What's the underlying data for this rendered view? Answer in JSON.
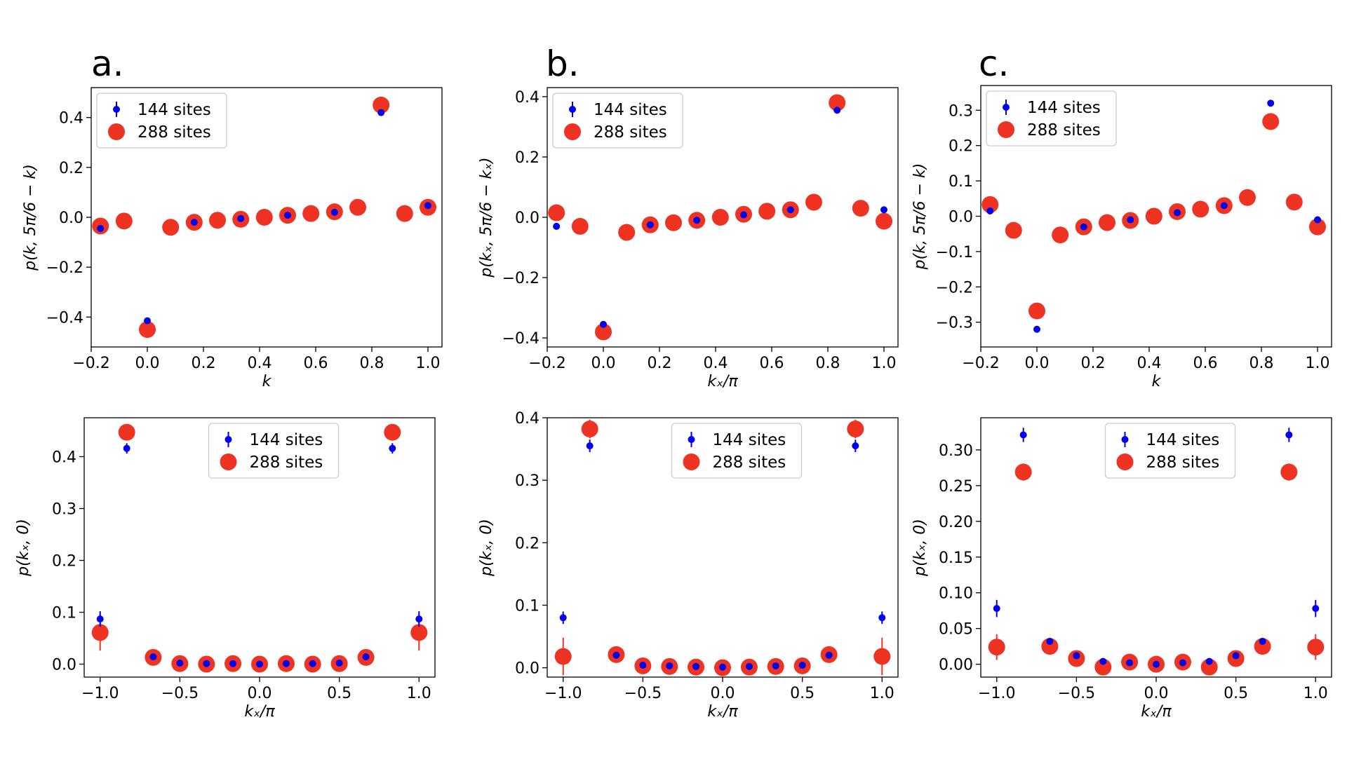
{
  "colors": {
    "series144": "#0000ee",
    "series288": "#ee3322",
    "axis": "#000000",
    "background": "#ffffff",
    "legend_border": "#cccccc"
  },
  "chart_data": [
    {
      "panel": "a.",
      "type": "scatter",
      "xlabel": "k",
      "ylabel": "p(k, 5π/6 − k)",
      "xlim": [
        -0.2,
        1.05
      ],
      "ylim": [
        -0.52,
        0.52
      ],
      "xticks": [
        -0.2,
        0.0,
        0.2,
        0.4,
        0.6,
        0.8,
        1.0
      ],
      "xtick_labels": [
        "−0.2",
        "0.0",
        "0.2",
        "0.4",
        "0.6",
        "0.8",
        "1.0"
      ],
      "yticks": [
        -0.4,
        -0.2,
        0.0,
        0.2,
        0.4
      ],
      "ytick_labels": [
        "−0.4",
        "−0.2",
        "0.0",
        "0.2",
        "0.4"
      ],
      "legend": {
        "position": "top-left",
        "entries": [
          "144 sites",
          "288 sites"
        ]
      },
      "series": [
        {
          "name": "144 sites",
          "marker": "small-dot-errorbar",
          "x": [
            -0.167,
            0.0,
            0.167,
            0.333,
            0.5,
            0.667,
            0.833,
            1.0
          ],
          "y": [
            -0.045,
            -0.415,
            -0.02,
            -0.005,
            0.008,
            0.02,
            0.42,
            0.047
          ],
          "err": [
            0.006,
            0.008,
            0.005,
            0.005,
            0.005,
            0.005,
            0.008,
            0.006
          ]
        },
        {
          "name": "288 sites",
          "marker": "large-dot",
          "x": [
            -0.167,
            -0.083,
            0.0,
            0.083,
            0.167,
            0.25,
            0.333,
            0.417,
            0.5,
            0.583,
            0.667,
            0.75,
            0.833,
            0.917,
            1.0
          ],
          "y": [
            -0.035,
            -0.015,
            -0.45,
            -0.04,
            -0.02,
            -0.012,
            -0.008,
            0.0,
            0.008,
            0.015,
            0.022,
            0.04,
            0.45,
            0.015,
            0.04
          ],
          "err": [
            0,
            0,
            0,
            0,
            0,
            0,
            0,
            0,
            0,
            0,
            0,
            0,
            0,
            0,
            0
          ]
        }
      ]
    },
    {
      "panel": "b.",
      "type": "scatter",
      "xlabel": "kₓ/π",
      "ylabel": "p(kₓ, 5π/6 − kₓ)",
      "xlim": [
        -0.2,
        1.05
      ],
      "ylim": [
        -0.43,
        0.43
      ],
      "xticks": [
        -0.2,
        0.0,
        0.2,
        0.4,
        0.6,
        0.8,
        1.0
      ],
      "xtick_labels": [
        "−0.2",
        "0.0",
        "0.2",
        "0.4",
        "0.6",
        "0.8",
        "1.0"
      ],
      "yticks": [
        -0.4,
        -0.2,
        0.0,
        0.2,
        0.4
      ],
      "ytick_labels": [
        "−0.4",
        "−0.2",
        "0.0",
        "0.2",
        "0.4"
      ],
      "legend": {
        "position": "top-left",
        "entries": [
          "144 sites",
          "288 sites"
        ]
      },
      "series": [
        {
          "name": "144 sites",
          "marker": "small-dot-errorbar",
          "x": [
            -0.167,
            0.0,
            0.167,
            0.333,
            0.5,
            0.667,
            0.833,
            1.0
          ],
          "y": [
            -0.03,
            -0.355,
            -0.025,
            -0.01,
            0.008,
            0.025,
            0.355,
            0.025
          ],
          "err": [
            0.006,
            0.008,
            0.005,
            0.005,
            0.005,
            0.005,
            0.008,
            0.006
          ]
        },
        {
          "name": "288 sites",
          "marker": "large-dot",
          "x": [
            -0.167,
            -0.083,
            0.0,
            0.083,
            0.167,
            0.25,
            0.333,
            0.417,
            0.5,
            0.583,
            0.667,
            0.75,
            0.833,
            0.917,
            1.0
          ],
          "y": [
            0.015,
            -0.03,
            -0.38,
            -0.05,
            -0.025,
            -0.018,
            -0.01,
            0.0,
            0.01,
            0.02,
            0.025,
            0.05,
            0.38,
            0.03,
            -0.013
          ],
          "err": [
            0,
            0,
            0,
            0,
            0,
            0,
            0,
            0,
            0,
            0,
            0,
            0,
            0,
            0,
            0
          ]
        }
      ]
    },
    {
      "panel": "c.",
      "type": "scatter",
      "xlabel": "k",
      "ylabel": "p(k, 5π/6 − k)",
      "xlim": [
        -0.2,
        1.05
      ],
      "ylim": [
        -0.37,
        0.37
      ],
      "xticks": [
        -0.2,
        0.0,
        0.2,
        0.4,
        0.6,
        0.8,
        1.0
      ],
      "xtick_labels": [
        "−0.2",
        "0.0",
        "0.2",
        "0.4",
        "0.6",
        "0.8",
        "1.0"
      ],
      "yticks": [
        -0.3,
        -0.2,
        -0.1,
        0.0,
        0.1,
        0.2,
        0.3
      ],
      "ytick_labels": [
        "−0.3",
        "−0.2",
        "−0.1",
        "0.0",
        "0.1",
        "0.2",
        "0.3"
      ],
      "legend": {
        "position": "top-left",
        "entries": [
          "144 sites",
          "288 sites"
        ]
      },
      "series": [
        {
          "name": "144 sites",
          "marker": "small-dot-errorbar",
          "x": [
            -0.167,
            0.0,
            0.167,
            0.333,
            0.5,
            0.667,
            0.833,
            1.0
          ],
          "y": [
            0.015,
            -0.32,
            -0.03,
            -0.01,
            0.01,
            0.03,
            0.32,
            -0.01
          ],
          "err": [
            0.006,
            0.008,
            0.005,
            0.005,
            0.005,
            0.005,
            0.008,
            0.006
          ]
        },
        {
          "name": "288 sites",
          "marker": "large-dot",
          "x": [
            -0.167,
            -0.083,
            0.0,
            0.083,
            0.167,
            0.25,
            0.333,
            0.417,
            0.5,
            0.583,
            0.667,
            0.75,
            0.833,
            0.917,
            1.0
          ],
          "y": [
            0.033,
            -0.04,
            -0.268,
            -0.053,
            -0.03,
            -0.018,
            -0.012,
            0.0,
            0.013,
            0.02,
            0.03,
            0.053,
            0.268,
            0.04,
            -0.03
          ],
          "err": [
            0,
            0,
            0,
            0,
            0,
            0,
            0,
            0,
            0,
            0,
            0,
            0,
            0,
            0,
            0
          ]
        }
      ]
    },
    {
      "panel": "",
      "type": "scatter",
      "xlabel": "kₓ/π",
      "ylabel": "p(kₓ, 0)",
      "xlim": [
        -1.1,
        1.1
      ],
      "ylim": [
        -0.025,
        0.475
      ],
      "xticks": [
        -1.0,
        -0.5,
        0.0,
        0.5,
        1.0
      ],
      "xtick_labels": [
        "−1.0",
        "−0.5",
        "0.0",
        "0.5",
        "1.0"
      ],
      "yticks": [
        0.0,
        0.1,
        0.2,
        0.3,
        0.4
      ],
      "ytick_labels": [
        "0.0",
        "0.1",
        "0.2",
        "0.3",
        "0.4"
      ],
      "legend": {
        "position": "top-center",
        "entries": [
          "144 sites",
          "288 sites"
        ]
      },
      "series": [
        {
          "name": "144 sites",
          "marker": "small-dot-errorbar",
          "x": [
            -1.0,
            -0.833,
            -0.667,
            -0.5,
            -0.333,
            -0.167,
            0.0,
            0.167,
            0.333,
            0.5,
            0.667,
            0.833,
            1.0
          ],
          "y": [
            0.087,
            0.416,
            0.014,
            0.002,
            0.001,
            0.001,
            0.0,
            0.001,
            0.001,
            0.002,
            0.014,
            0.416,
            0.087
          ],
          "err": [
            0.015,
            0.01,
            0.004,
            0.003,
            0.003,
            0.003,
            0.003,
            0.003,
            0.003,
            0.003,
            0.004,
            0.01,
            0.015
          ]
        },
        {
          "name": "288 sites",
          "marker": "large-dot-errorbar",
          "x": [
            -1.0,
            -0.833,
            -0.667,
            -0.5,
            -0.333,
            -0.167,
            0.0,
            0.167,
            0.333,
            0.5,
            0.667,
            0.833,
            1.0
          ],
          "y": [
            0.061,
            0.447,
            0.013,
            0.001,
            0.0,
            0.001,
            0.0,
            0.001,
            0.0,
            0.001,
            0.013,
            0.447,
            0.061
          ],
          "err": [
            0.035,
            0.012,
            0.004,
            0.003,
            0.003,
            0.003,
            0.003,
            0.003,
            0.003,
            0.003,
            0.004,
            0.012,
            0.035
          ]
        }
      ]
    },
    {
      "panel": "",
      "type": "scatter",
      "xlabel": "kₓ/π",
      "ylabel": "p(kₓ, 0)",
      "xlim": [
        -1.1,
        1.1
      ],
      "ylim": [
        -0.015,
        0.4
      ],
      "xticks": [
        -1.0,
        -0.5,
        0.0,
        0.5,
        1.0
      ],
      "xtick_labels": [
        "−1.0",
        "−0.5",
        "0.0",
        "0.5",
        "1.0"
      ],
      "yticks": [
        0.0,
        0.1,
        0.2,
        0.3,
        0.4
      ],
      "ytick_labels": [
        "0.0",
        "0.1",
        "0.2",
        "0.3",
        "0.4"
      ],
      "legend": {
        "position": "top-center",
        "entries": [
          "144 sites",
          "288 sites"
        ]
      },
      "series": [
        {
          "name": "144 sites",
          "marker": "small-dot-errorbar",
          "x": [
            -1.0,
            -0.833,
            -0.667,
            -0.5,
            -0.333,
            -0.167,
            0.0,
            0.167,
            0.333,
            0.5,
            0.667,
            0.833,
            1.0
          ],
          "y": [
            0.08,
            0.355,
            0.02,
            0.004,
            0.003,
            0.002,
            0.001,
            0.002,
            0.003,
            0.004,
            0.02,
            0.355,
            0.08
          ],
          "err": [
            0.01,
            0.01,
            0.004,
            0.003,
            0.003,
            0.003,
            0.003,
            0.003,
            0.003,
            0.003,
            0.004,
            0.01,
            0.01
          ]
        },
        {
          "name": "288 sites",
          "marker": "large-dot-errorbar",
          "x": [
            -1.0,
            -0.833,
            -0.667,
            -0.5,
            -0.333,
            -0.167,
            0.0,
            0.167,
            0.333,
            0.5,
            0.667,
            0.833,
            1.0
          ],
          "y": [
            0.018,
            0.382,
            0.021,
            0.003,
            0.002,
            0.001,
            0.0,
            0.001,
            0.002,
            0.003,
            0.021,
            0.382,
            0.018
          ],
          "err": [
            0.03,
            0.015,
            0.004,
            0.003,
            0.003,
            0.003,
            0.003,
            0.003,
            0.003,
            0.003,
            0.004,
            0.015,
            0.03
          ]
        }
      ]
    },
    {
      "panel": "",
      "type": "scatter",
      "xlabel": "kₓ/π",
      "ylabel": "p(kₓ, 0)",
      "xlim": [
        -1.1,
        1.1
      ],
      "ylim": [
        -0.018,
        0.345
      ],
      "xticks": [
        -1.0,
        -0.5,
        0.0,
        0.5,
        1.0
      ],
      "xtick_labels": [
        "−1.0",
        "−0.5",
        "0.0",
        "0.5",
        "1.0"
      ],
      "yticks": [
        0.0,
        0.05,
        0.1,
        0.15,
        0.2,
        0.25,
        0.3
      ],
      "ytick_labels": [
        "0.00",
        "0.05",
        "0.10",
        "0.15",
        "0.20",
        "0.25",
        "0.30"
      ],
      "legend": {
        "position": "top-center",
        "entries": [
          "144 sites",
          "288 sites"
        ]
      },
      "series": [
        {
          "name": "144 sites",
          "marker": "small-dot-errorbar",
          "x": [
            -1.0,
            -0.833,
            -0.667,
            -0.5,
            -0.333,
            -0.167,
            0.0,
            0.167,
            0.333,
            0.5,
            0.667,
            0.833,
            1.0
          ],
          "y": [
            0.078,
            0.321,
            0.032,
            0.012,
            0.004,
            0.002,
            0.0,
            0.002,
            0.004,
            0.012,
            0.032,
            0.321,
            0.078
          ],
          "err": [
            0.012,
            0.01,
            0.004,
            0.003,
            0.003,
            0.003,
            0.003,
            0.003,
            0.003,
            0.003,
            0.004,
            0.01,
            0.012
          ]
        },
        {
          "name": "288 sites",
          "marker": "large-dot-errorbar",
          "x": [
            -1.0,
            -0.833,
            -0.667,
            -0.5,
            -0.333,
            -0.167,
            0.0,
            0.167,
            0.333,
            0.5,
            0.667,
            0.833,
            1.0
          ],
          "y": [
            0.024,
            0.269,
            0.025,
            0.008,
            -0.004,
            0.003,
            0.0,
            0.003,
            -0.004,
            0.008,
            0.025,
            0.269,
            0.024
          ],
          "err": [
            0.018,
            0.012,
            0.004,
            0.003,
            0.003,
            0.003,
            0.003,
            0.003,
            0.003,
            0.003,
            0.004,
            0.012,
            0.018
          ]
        }
      ]
    }
  ]
}
